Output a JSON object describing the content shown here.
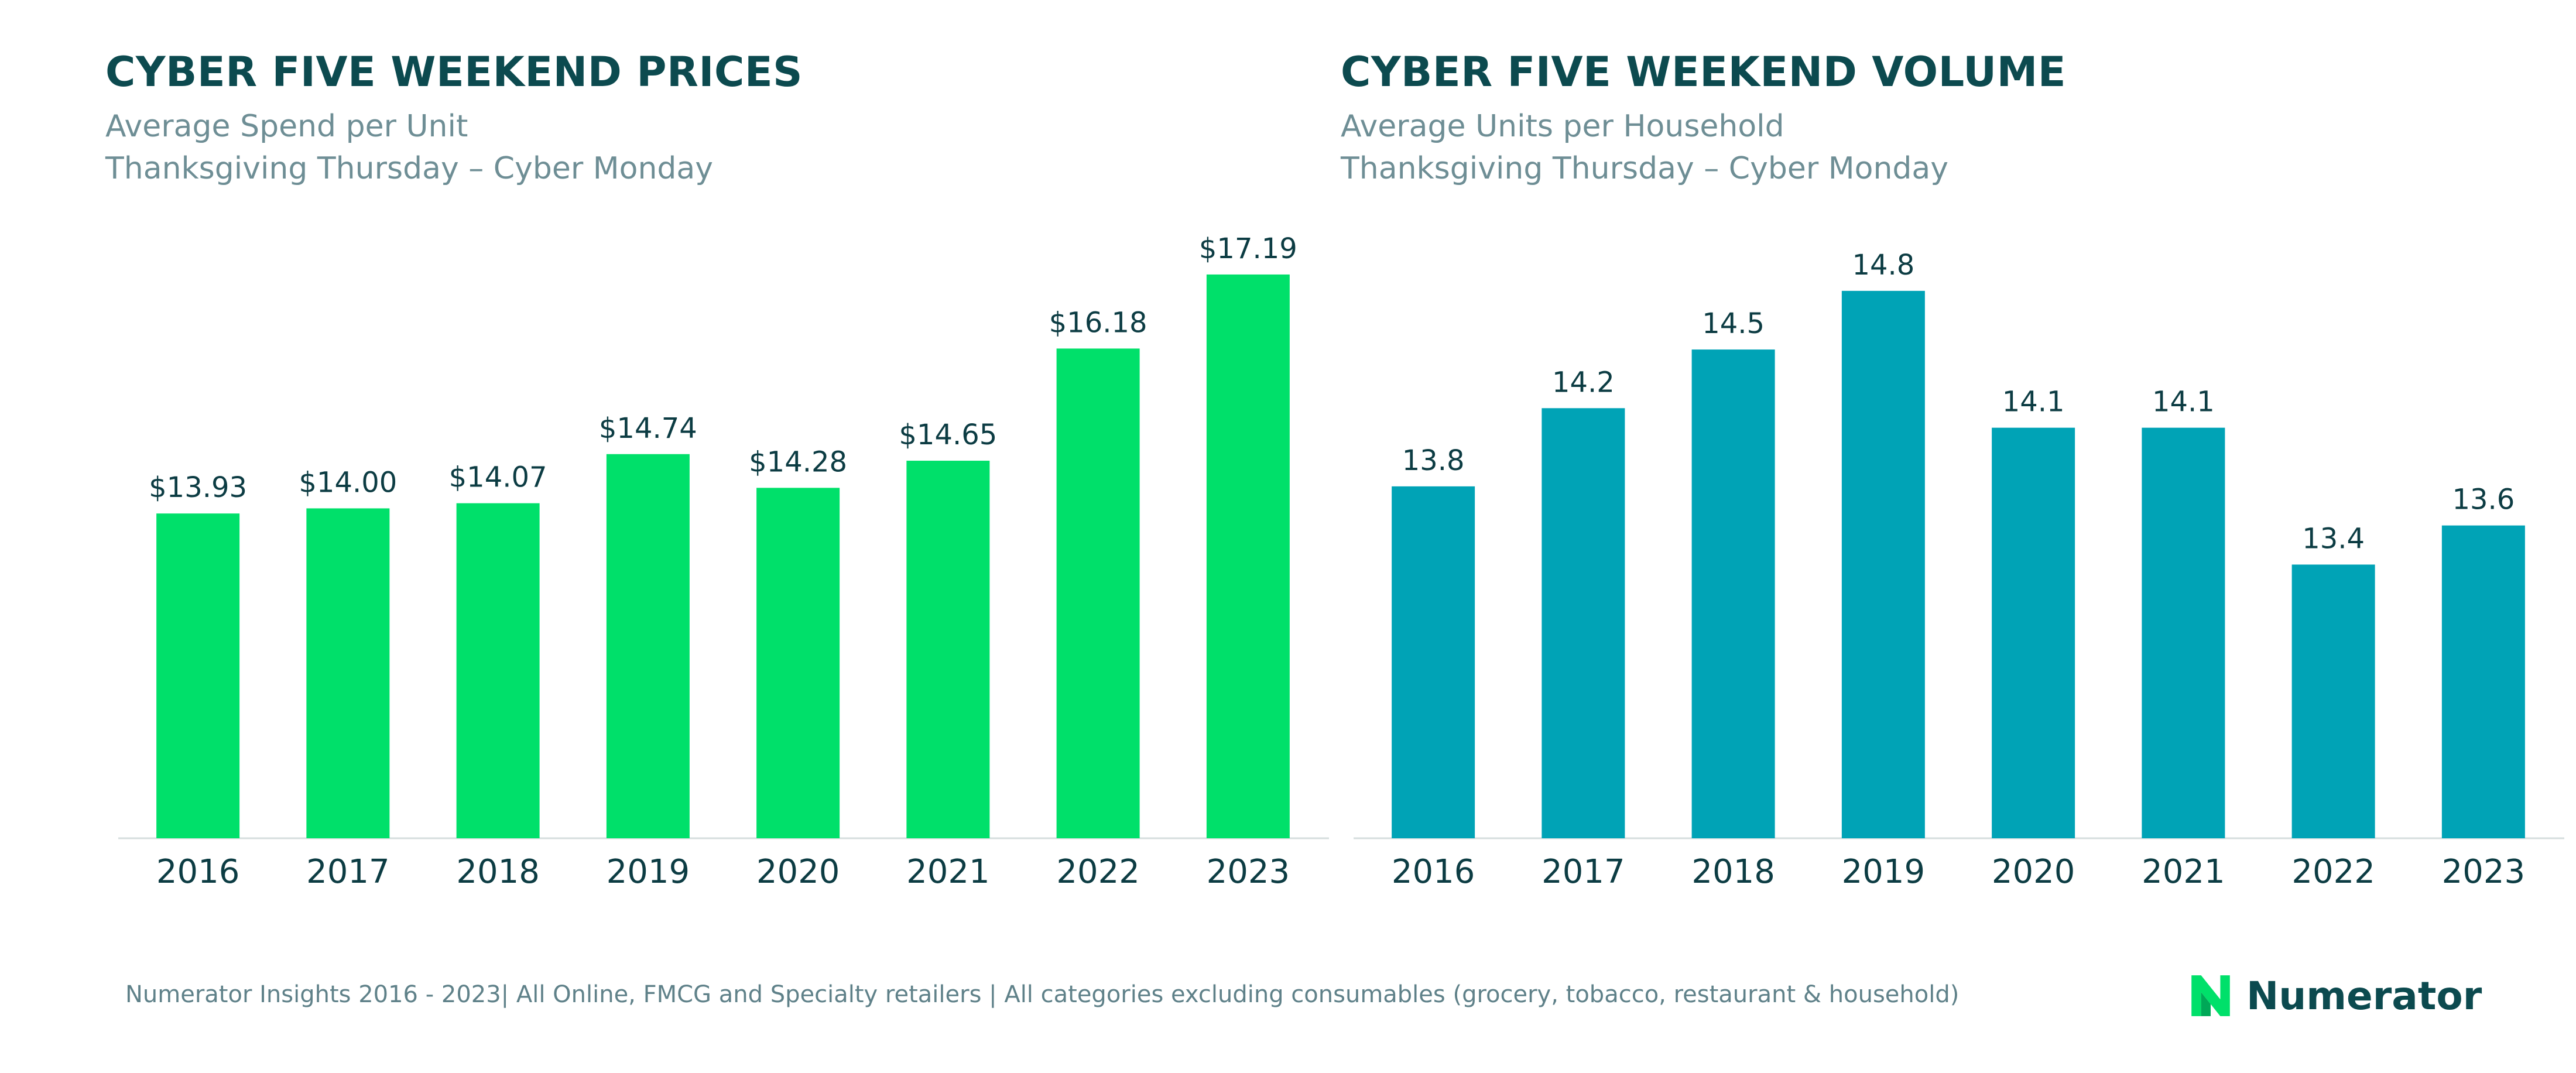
{
  "colors": {
    "prices_bar": "#00e06a",
    "volume_bar": "#00a3b6",
    "title": "#0c4a4f",
    "subtitle": "#6e8e95",
    "axis": "#d6dede"
  },
  "charts": [
    {
      "title": "CYBER FIVE WEEKEND PRICES",
      "subtitle1": "Average Spend per Unit",
      "subtitle2": "Thanksgiving Thursday – Cyber Monday"
    },
    {
      "title": "CYBER FIVE WEEKEND VOLUME",
      "subtitle1": "Average Units per Household",
      "subtitle2": "Thanksgiving Thursday – Cyber Monday"
    }
  ],
  "chart_data": [
    {
      "type": "bar",
      "title": "CYBER FIVE WEEKEND PRICES",
      "subtitle": "Average Spend per Unit — Thanksgiving Thursday – Cyber Monday",
      "categories": [
        "2016",
        "2017",
        "2018",
        "2019",
        "2020",
        "2021",
        "2022",
        "2023"
      ],
      "values": [
        13.93,
        14.0,
        14.07,
        14.74,
        14.28,
        14.65,
        16.18,
        17.19
      ],
      "labels": [
        "$13.93",
        "$14.00",
        "$14.07",
        "$14.74",
        "$14.28",
        "$14.65",
        "$16.18",
        "$17.19"
      ],
      "ylim": [
        9.5,
        17.9
      ],
      "grid": false,
      "legend": "none"
    },
    {
      "type": "bar",
      "title": "CYBER FIVE WEEKEND VOLUME",
      "subtitle": "Average Units per Household — Thanksgiving Thursday – Cyber Monday",
      "categories": [
        "2016",
        "2017",
        "2018",
        "2019",
        "2020",
        "2021",
        "2022",
        "2023"
      ],
      "values": [
        13.8,
        14.2,
        14.5,
        14.8,
        14.1,
        14.1,
        13.4,
        13.6
      ],
      "labels": [
        "13.8",
        "14.2",
        "14.5",
        "14.8",
        "14.1",
        "14.1",
        "13.4",
        "13.6"
      ],
      "ylim": [
        12.0,
        15.15
      ],
      "grid": false,
      "legend": "none"
    }
  ],
  "footer": {
    "source": "Numerator Insights 2016 - 2023| All Online, FMCG and Specialty retailers | All categories excluding consumables (grocery, tobacco, restaurant & household)",
    "brand": "Numerator",
    "logo_icon": "numerator-n-logo"
  }
}
